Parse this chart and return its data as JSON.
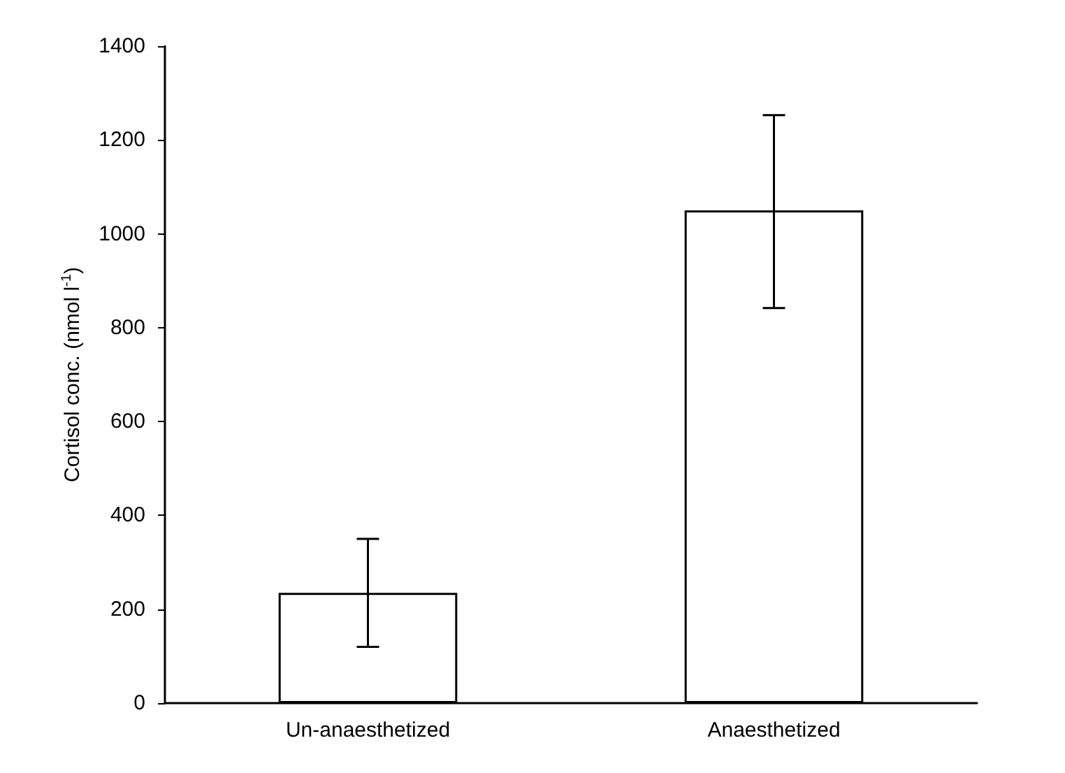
{
  "chart_data": {
    "type": "bar",
    "ylabel": "Cortisol conc. (nmol l$^{-1}$)",
    "categories": [
      "Un-anaesthetized",
      "Anaesthetized"
    ],
    "values": [
      235,
      1050
    ],
    "color": "#ffffff",
    "errors": [
      [
        120,
        350
      ],
      [
        842,
        1253
      ]
    ],
    "ylim": [
      0,
      1400
    ],
    "yticks": [
      0,
      200,
      400,
      600,
      800,
      1000,
      1200,
      1400
    ]
  }
}
